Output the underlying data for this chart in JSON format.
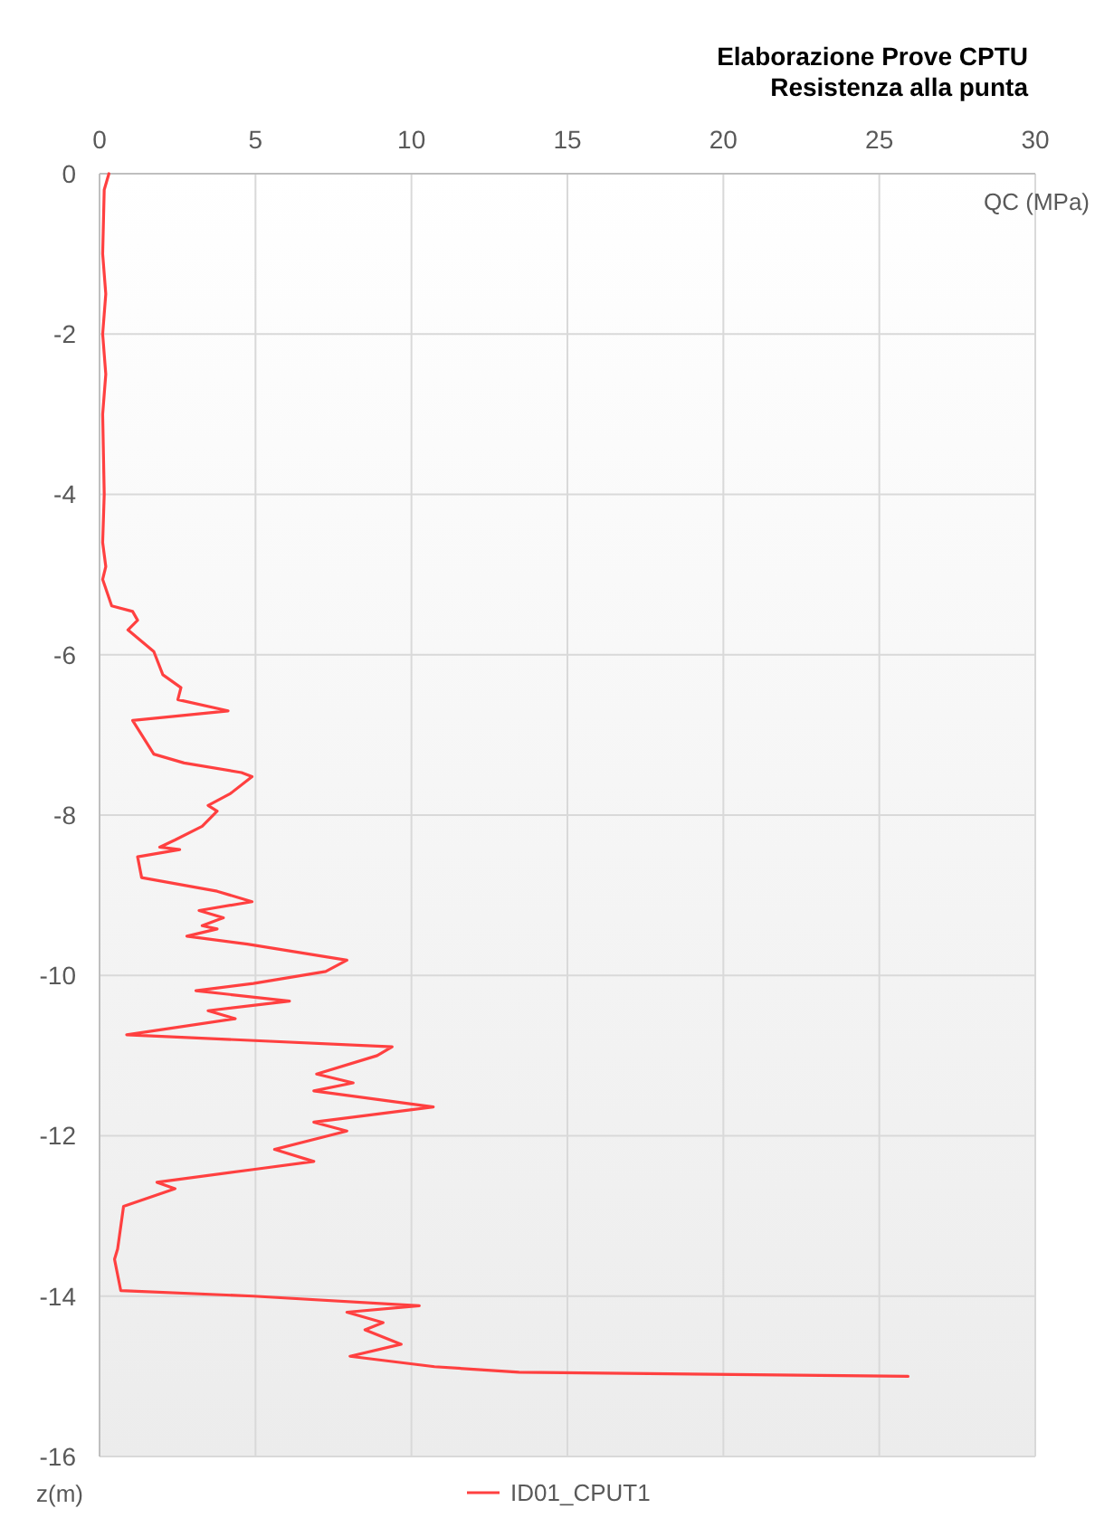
{
  "chart_data": {
    "type": "line",
    "title": "Elaborazione Prove CPTU",
    "subtitle": "Resistenza alla punta",
    "xlabel": "QC (MPa)",
    "ylabel": "z(m)",
    "xlim": [
      0,
      30
    ],
    "xticks": [
      0,
      5,
      10,
      15,
      20,
      25,
      30
    ],
    "ylim": [
      -16,
      0
    ],
    "yticks": [
      0,
      -2,
      -4,
      -6,
      -8,
      -10,
      -12,
      -14,
      -16
    ],
    "grid": true,
    "legend": "bottom",
    "series": [
      {
        "name": "ID01_CPUT1",
        "color": "#ff4040",
        "x": [
          0.3,
          0.15,
          0.1,
          0.2,
          0.1,
          0.2,
          0.1,
          0.15,
          0.1,
          0.2,
          0.1,
          0.39,
          1.06,
          1.22,
          0.91,
          1.74,
          2.03,
          2.61,
          2.51,
          4.12,
          1.06,
          1.74,
          2.71,
          4.55,
          4.89,
          4.2,
          3.48,
          3.77,
          3.29,
          2.42,
          1.93,
          2.57,
          1.22,
          1.35,
          3.77,
          4.89,
          3.19,
          3.97,
          3.29,
          3.77,
          2.8,
          4.74,
          7.93,
          7.25,
          4.93,
          3.09,
          6.09,
          3.48,
          4.35,
          0.87,
          9.38,
          8.9,
          6.96,
          8.13,
          6.87,
          10.7,
          6.87,
          7.93,
          5.61,
          6.87,
          4.93,
          1.84,
          2.42,
          0.77,
          0.58,
          0.48,
          0.68,
          4.93,
          10.25,
          7.93,
          9.09,
          8.51,
          9.67,
          8.03,
          10.74,
          13.45,
          25.92
        ],
        "values": [
          0,
          -0.2,
          -1,
          -1.5,
          -2,
          -2.5,
          -3,
          -4,
          -4.6,
          -4.9,
          -5.06,
          -5.39,
          -5.46,
          -5.57,
          -5.69,
          -5.96,
          -6.25,
          -6.41,
          -6.56,
          -6.7,
          -6.82,
          -7.24,
          -7.35,
          -7.47,
          -7.52,
          -7.73,
          -7.88,
          -7.95,
          -8.14,
          -8.31,
          -8.4,
          -8.43,
          -8.52,
          -8.78,
          -8.95,
          -9.08,
          -9.19,
          -9.28,
          -9.38,
          -9.42,
          -9.51,
          -9.61,
          -9.81,
          -9.95,
          -10.1,
          -10.19,
          -10.32,
          -10.44,
          -10.54,
          -10.74,
          -10.89,
          -11,
          -11.23,
          -11.34,
          -11.44,
          -11.64,
          -11.83,
          -11.94,
          -12.17,
          -12.32,
          -12.42,
          -12.58,
          -12.66,
          -12.88,
          -13.41,
          -13.54,
          -13.93,
          -14,
          -14.12,
          -14.2,
          -14.33,
          -14.42,
          -14.6,
          -14.75,
          -14.88,
          -14.95,
          -15
        ]
      }
    ]
  }
}
